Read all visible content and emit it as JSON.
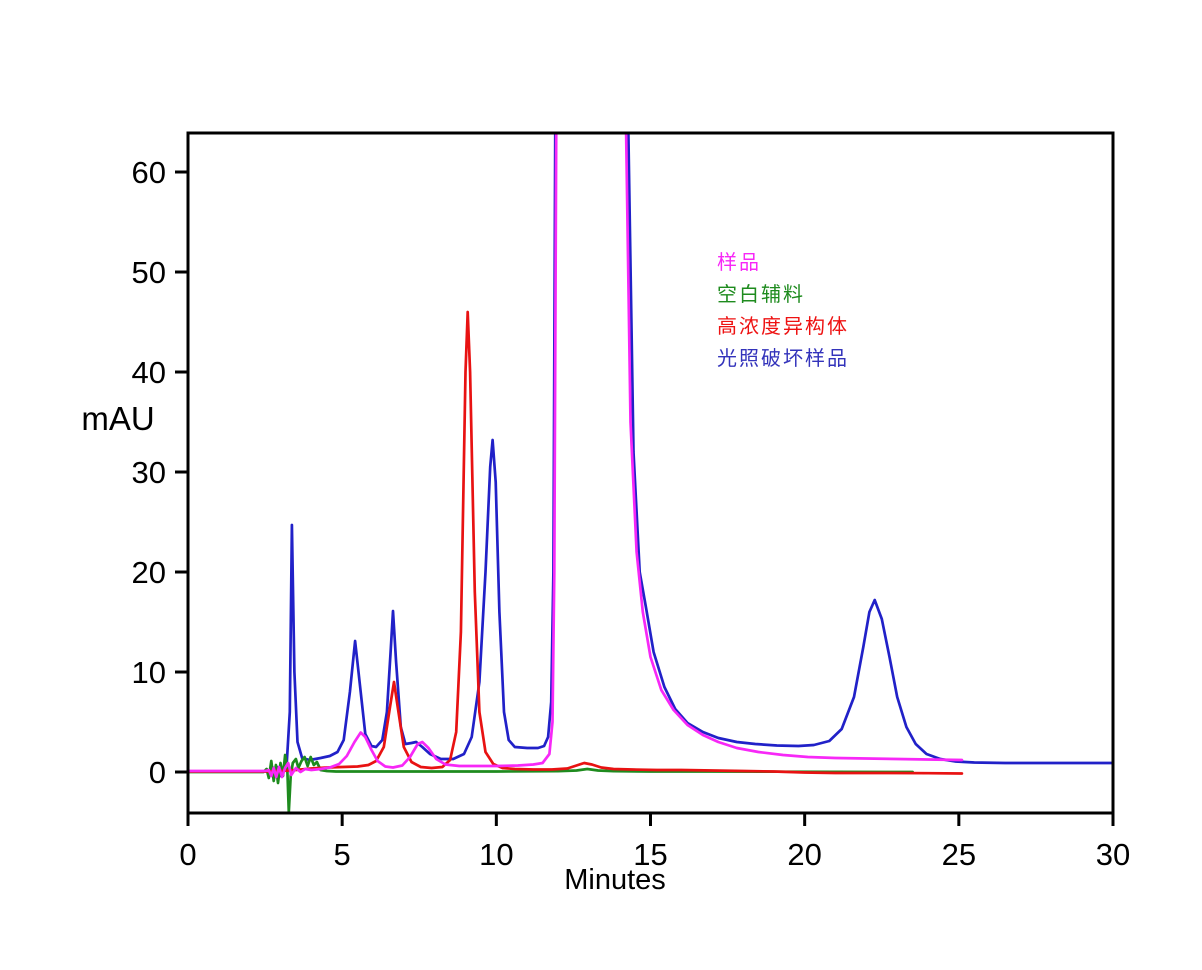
{
  "figure": {
    "background": "#FFFFFF"
  },
  "legend": {
    "items": [
      {
        "label": "样品",
        "color": "#F728F7"
      },
      {
        "label": "空白辅料",
        "color": "#1E8B1E"
      },
      {
        "label": "高浓度异构体",
        "color": "#EE1212"
      },
      {
        "label": "光照破坏样品",
        "color": "#3333BB"
      }
    ]
  },
  "chart_data": {
    "type": "line",
    "title": "",
    "xlabel": "Minutes",
    "ylabel": "mAU",
    "xlim": [
      0,
      30
    ],
    "ylim": [
      -4.1,
      63.9
    ],
    "x_ticks": [
      0,
      5,
      10,
      15,
      20,
      25,
      30
    ],
    "y_ticks": [
      0,
      10,
      20,
      30,
      40,
      50,
      60
    ],
    "grid": false,
    "frame": "full-box",
    "legend_position": "inside-upper-right",
    "offscale_value": 70,
    "series": [
      {
        "name": "光照破坏样品",
        "color": "#2121C8",
        "points": [
          [
            0,
            0.05
          ],
          [
            0.5,
            0.05
          ],
          [
            1,
            0.05
          ],
          [
            1.5,
            0.05
          ],
          [
            2,
            0.05
          ],
          [
            2.5,
            0.05
          ],
          [
            2.65,
            0.1
          ],
          [
            2.75,
            0.45
          ],
          [
            2.82,
            -0.3
          ],
          [
            2.9,
            0.5
          ],
          [
            3.0,
            -0.4
          ],
          [
            3.1,
            0.4
          ],
          [
            3.2,
            0.8
          ],
          [
            3.3,
            6
          ],
          [
            3.37,
            24.7
          ],
          [
            3.45,
            10
          ],
          [
            3.55,
            3
          ],
          [
            3.7,
            1.4
          ],
          [
            3.95,
            1.2
          ],
          [
            4.3,
            1.4
          ],
          [
            4.6,
            1.6
          ],
          [
            4.85,
            2.0
          ],
          [
            5.05,
            3.2
          ],
          [
            5.25,
            8
          ],
          [
            5.42,
            13.1
          ],
          [
            5.6,
            8
          ],
          [
            5.75,
            3.8
          ],
          [
            5.95,
            2.6
          ],
          [
            6.1,
            2.5
          ],
          [
            6.3,
            3.2
          ],
          [
            6.45,
            6
          ],
          [
            6.57,
            12
          ],
          [
            6.65,
            16.1
          ],
          [
            6.75,
            11
          ],
          [
            6.9,
            4.5
          ],
          [
            7.05,
            2.8
          ],
          [
            7.25,
            2.9
          ],
          [
            7.4,
            3.0
          ],
          [
            7.6,
            2.5
          ],
          [
            7.85,
            1.8
          ],
          [
            8.2,
            1.3
          ],
          [
            8.6,
            1.3
          ],
          [
            8.95,
            1.8
          ],
          [
            9.2,
            3.5
          ],
          [
            9.45,
            9
          ],
          [
            9.65,
            20
          ],
          [
            9.8,
            30.5
          ],
          [
            9.88,
            33.2
          ],
          [
            9.98,
            29
          ],
          [
            10.1,
            16
          ],
          [
            10.25,
            6
          ],
          [
            10.4,
            3.2
          ],
          [
            10.6,
            2.5
          ],
          [
            11.0,
            2.4
          ],
          [
            11.35,
            2.4
          ],
          [
            11.55,
            2.6
          ],
          [
            11.68,
            3.5
          ],
          [
            11.78,
            7
          ],
          [
            11.85,
            20
          ],
          [
            11.92,
            70
          ],
          [
            14.25,
            70
          ],
          [
            14.45,
            32
          ],
          [
            14.65,
            20
          ],
          [
            14.85,
            16.5
          ],
          [
            15.1,
            12
          ],
          [
            15.45,
            8.5
          ],
          [
            15.8,
            6.3
          ],
          [
            16.2,
            4.9
          ],
          [
            16.7,
            4.0
          ],
          [
            17.2,
            3.4
          ],
          [
            17.8,
            3.0
          ],
          [
            18.4,
            2.8
          ],
          [
            19.1,
            2.65
          ],
          [
            19.8,
            2.6
          ],
          [
            20.3,
            2.7
          ],
          [
            20.8,
            3.1
          ],
          [
            21.2,
            4.3
          ],
          [
            21.6,
            7.5
          ],
          [
            21.9,
            12.5
          ],
          [
            22.1,
            16
          ],
          [
            22.27,
            17.2
          ],
          [
            22.5,
            15.3
          ],
          [
            22.75,
            11.5
          ],
          [
            23.0,
            7.5
          ],
          [
            23.3,
            4.5
          ],
          [
            23.6,
            2.8
          ],
          [
            23.95,
            1.8
          ],
          [
            24.4,
            1.3
          ],
          [
            24.9,
            1.05
          ],
          [
            25.5,
            0.95
          ],
          [
            26.5,
            0.9
          ],
          [
            28,
            0.9
          ],
          [
            30,
            0.9
          ]
        ]
      },
      {
        "name": "空白辅料",
        "color": "#1E8B1E",
        "points": [
          [
            0,
            0.0
          ],
          [
            0.5,
            0.0
          ],
          [
            1,
            0.0
          ],
          [
            1.5,
            0.0
          ],
          [
            2,
            0.0
          ],
          [
            2.45,
            0.0
          ],
          [
            2.55,
            0.3
          ],
          [
            2.62,
            -0.6
          ],
          [
            2.7,
            1.1
          ],
          [
            2.78,
            -0.9
          ],
          [
            2.85,
            0.7
          ],
          [
            2.92,
            -1.1
          ],
          [
            3.0,
            0.9
          ],
          [
            3.08,
            -0.4
          ],
          [
            3.15,
            1.7
          ],
          [
            3.22,
            0.3
          ],
          [
            3.27,
            -4.0
          ],
          [
            3.33,
            -0.4
          ],
          [
            3.4,
            0.9
          ],
          [
            3.5,
            1.3
          ],
          [
            3.58,
            0.4
          ],
          [
            3.68,
            1.1
          ],
          [
            3.78,
            1.5
          ],
          [
            3.88,
            0.6
          ],
          [
            3.98,
            1.5
          ],
          [
            4.08,
            0.7
          ],
          [
            4.18,
            1.0
          ],
          [
            4.3,
            0.2
          ],
          [
            4.5,
            0.1
          ],
          [
            4.8,
            0.05
          ],
          [
            5.5,
            0.05
          ],
          [
            6.5,
            0.05
          ],
          [
            8,
            0.05
          ],
          [
            10,
            0.05
          ],
          [
            12.0,
            0.08
          ],
          [
            12.6,
            0.15
          ],
          [
            12.95,
            0.3
          ],
          [
            13.3,
            0.15
          ],
          [
            13.8,
            0.08
          ],
          [
            15,
            0.05
          ],
          [
            17,
            0.05
          ],
          [
            19,
            0.03
          ],
          [
            21,
            0.02
          ],
          [
            23.5,
            0.0
          ]
        ]
      },
      {
        "name": "高浓度异构体",
        "color": "#E81212",
        "points": [
          [
            0,
            0.05
          ],
          [
            0.5,
            0.05
          ],
          [
            1,
            0.05
          ],
          [
            1.5,
            0.05
          ],
          [
            2,
            0.05
          ],
          [
            2.5,
            0.05
          ],
          [
            3.0,
            0.1
          ],
          [
            3.5,
            0.2
          ],
          [
            4.0,
            0.35
          ],
          [
            4.5,
            0.45
          ],
          [
            5.0,
            0.5
          ],
          [
            5.5,
            0.55
          ],
          [
            5.85,
            0.7
          ],
          [
            6.1,
            1.1
          ],
          [
            6.35,
            2.5
          ],
          [
            6.55,
            6.5
          ],
          [
            6.68,
            9.0
          ],
          [
            6.8,
            6.5
          ],
          [
            7.0,
            2.5
          ],
          [
            7.25,
            1.0
          ],
          [
            7.55,
            0.5
          ],
          [
            7.9,
            0.4
          ],
          [
            8.25,
            0.5
          ],
          [
            8.5,
            1.2
          ],
          [
            8.7,
            4
          ],
          [
            8.85,
            14
          ],
          [
            9.0,
            40
          ],
          [
            9.07,
            46.0
          ],
          [
            9.15,
            40
          ],
          [
            9.3,
            18
          ],
          [
            9.45,
            6
          ],
          [
            9.65,
            2
          ],
          [
            9.9,
            0.8
          ],
          [
            10.2,
            0.4
          ],
          [
            10.6,
            0.3
          ],
          [
            11.2,
            0.25
          ],
          [
            11.8,
            0.25
          ],
          [
            12.3,
            0.35
          ],
          [
            12.65,
            0.7
          ],
          [
            12.85,
            0.9
          ],
          [
            13.1,
            0.75
          ],
          [
            13.4,
            0.45
          ],
          [
            13.8,
            0.3
          ],
          [
            14.4,
            0.25
          ],
          [
            15.2,
            0.2
          ],
          [
            16.0,
            0.2
          ],
          [
            17.0,
            0.15
          ],
          [
            18.0,
            0.1
          ],
          [
            19.0,
            0.05
          ],
          [
            20.0,
            -0.05
          ],
          [
            21.0,
            -0.1
          ],
          [
            22.5,
            -0.1
          ],
          [
            24.0,
            -0.12
          ],
          [
            25.1,
            -0.15
          ]
        ]
      },
      {
        "name": "样品",
        "color": "#F728F7",
        "points": [
          [
            0,
            0.1
          ],
          [
            0.5,
            0.1
          ],
          [
            1,
            0.1
          ],
          [
            1.5,
            0.1
          ],
          [
            2,
            0.1
          ],
          [
            2.5,
            0.1
          ],
          [
            2.62,
            0.2
          ],
          [
            2.7,
            -0.4
          ],
          [
            2.78,
            0.4
          ],
          [
            2.86,
            -0.5
          ],
          [
            2.95,
            0.5
          ],
          [
            3.05,
            -0.5
          ],
          [
            3.15,
            0.4
          ],
          [
            3.25,
            0.9
          ],
          [
            3.35,
            -0.3
          ],
          [
            3.5,
            0.4
          ],
          [
            3.65,
            0.0
          ],
          [
            3.8,
            0.3
          ],
          [
            4.0,
            0.2
          ],
          [
            4.3,
            0.3
          ],
          [
            4.6,
            0.45
          ],
          [
            4.9,
            0.8
          ],
          [
            5.15,
            1.6
          ],
          [
            5.4,
            3.0
          ],
          [
            5.6,
            3.95
          ],
          [
            5.75,
            3.5
          ],
          [
            5.95,
            2.2
          ],
          [
            6.15,
            1.1
          ],
          [
            6.4,
            0.55
          ],
          [
            6.65,
            0.45
          ],
          [
            6.95,
            0.65
          ],
          [
            7.2,
            1.5
          ],
          [
            7.45,
            2.8
          ],
          [
            7.6,
            3.0
          ],
          [
            7.8,
            2.4
          ],
          [
            8.05,
            1.3
          ],
          [
            8.35,
            0.75
          ],
          [
            8.8,
            0.6
          ],
          [
            9.4,
            0.6
          ],
          [
            10.0,
            0.6
          ],
          [
            10.7,
            0.65
          ],
          [
            11.2,
            0.75
          ],
          [
            11.5,
            0.9
          ],
          [
            11.72,
            1.8
          ],
          [
            11.82,
            5
          ],
          [
            11.88,
            20
          ],
          [
            11.95,
            70
          ],
          [
            14.18,
            70
          ],
          [
            14.35,
            35
          ],
          [
            14.55,
            22
          ],
          [
            14.75,
            16
          ],
          [
            15.0,
            11.5
          ],
          [
            15.35,
            8.2
          ],
          [
            15.75,
            6.2
          ],
          [
            16.2,
            4.7
          ],
          [
            16.7,
            3.7
          ],
          [
            17.2,
            3.0
          ],
          [
            17.8,
            2.4
          ],
          [
            18.5,
            2.0
          ],
          [
            19.3,
            1.7
          ],
          [
            20.1,
            1.5
          ],
          [
            21.0,
            1.4
          ],
          [
            22.0,
            1.35
          ],
          [
            23.0,
            1.3
          ],
          [
            24.0,
            1.25
          ],
          [
            25.1,
            1.2
          ]
        ]
      }
    ]
  }
}
